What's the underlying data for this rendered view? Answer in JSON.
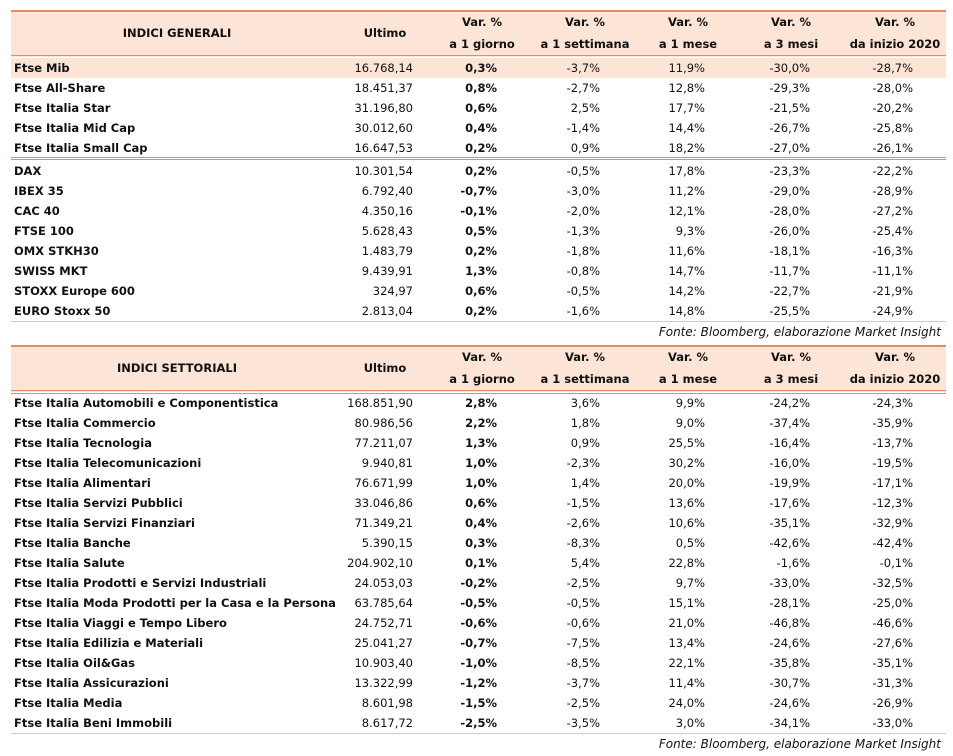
{
  "table1": {
    "header": {
      "name": "INDICI GENERALI",
      "columns": [
        [
          "Ultimo"
        ],
        [
          "Var. %",
          "a 1 giorno"
        ],
        [
          "Var. %",
          "a 1 settimana"
        ],
        [
          "Var. %",
          "a 1 mese"
        ],
        [
          "Var. %",
          "a 3 mesi"
        ],
        [
          "Var. %",
          "da inizio 2020"
        ]
      ]
    },
    "groups": [
      [
        [
          "Ftse Mib",
          "16.768,14",
          "0,3%",
          "-3,7%",
          "11,9%",
          "-30,0%",
          "-28,7%"
        ],
        [
          "Ftse All-Share",
          "18.451,37",
          "0,8%",
          "-2,7%",
          "12,8%",
          "-29,3%",
          "-28,0%"
        ],
        [
          "Ftse Italia Star",
          "31.196,80",
          "0,6%",
          "2,5%",
          "17,7%",
          "-21,5%",
          "-20,2%"
        ],
        [
          "Ftse Italia Mid Cap",
          "30.012,60",
          "0,4%",
          "-1,4%",
          "14,4%",
          "-26,7%",
          "-25,8%"
        ],
        [
          "Ftse Italia Small Cap",
          "16.647,53",
          "0,2%",
          "0,9%",
          "18,2%",
          "-27,0%",
          "-26,1%"
        ]
      ],
      [
        [
          "DAX",
          "10.301,54",
          "0,2%",
          "-0,5%",
          "17,8%",
          "-23,3%",
          "-22,2%"
        ],
        [
          "IBEX 35",
          "6.792,40",
          "-0,7%",
          "-3,0%",
          "11,2%",
          "-29,0%",
          "-28,9%"
        ],
        [
          "CAC 40",
          "4.350,16",
          "-0,1%",
          "-2,0%",
          "12,1%",
          "-28,0%",
          "-27,2%"
        ],
        [
          "FTSE 100",
          "5.628,43",
          "0,5%",
          "-1,3%",
          "9,3%",
          "-26,0%",
          "-25,4%"
        ],
        [
          "OMX STKH30",
          "1.483,79",
          "0,2%",
          "-1,8%",
          "11,6%",
          "-18,1%",
          "-16,3%"
        ],
        [
          "SWISS MKT",
          "9.439,91",
          "1,3%",
          "-0,8%",
          "14,7%",
          "-11,7%",
          "-11,1%"
        ],
        [
          "STOXX Europe 600",
          "324,97",
          "0,6%",
          "-0,5%",
          "14,2%",
          "-22,7%",
          "-21,9%"
        ],
        [
          "EURO Stoxx 50",
          "2.813,04",
          "0,2%",
          "-1,6%",
          "14,8%",
          "-25,5%",
          "-24,9%"
        ]
      ]
    ],
    "source": "Fonte: Bloomberg, elaborazione Market Insight"
  },
  "table2": {
    "header": {
      "name": "INDICI SETTORIALI",
      "columns": [
        [
          "Ultimo"
        ],
        [
          "Var. %",
          "a 1 giorno"
        ],
        [
          "Var. %",
          "a 1 settimana"
        ],
        [
          "Var. %",
          "a 1 mese"
        ],
        [
          "Var. %",
          "a 3 mesi"
        ],
        [
          "Var. %",
          "da inizio 2020"
        ]
      ]
    },
    "groups": [
      [
        [
          "Ftse Italia Automobili e Componentistica",
          "168.851,90",
          "2,8%",
          "3,6%",
          "9,9%",
          "-24,2%",
          "-24,3%"
        ],
        [
          "Ftse Italia Commercio",
          "80.986,56",
          "2,2%",
          "1,8%",
          "9,0%",
          "-37,4%",
          "-35,9%"
        ],
        [
          "Ftse Italia Tecnologia",
          "77.211,07",
          "1,3%",
          "0,9%",
          "25,5%",
          "-16,4%",
          "-13,7%"
        ],
        [
          "Ftse Italia Telecomunicazioni",
          "9.940,81",
          "1,0%",
          "-2,3%",
          "30,2%",
          "-16,0%",
          "-19,5%"
        ],
        [
          "Ftse Italia Alimentari",
          "76.671,99",
          "1,0%",
          "1,4%",
          "20,0%",
          "-19,9%",
          "-17,1%"
        ],
        [
          "Ftse Italia Servizi Pubblici",
          "33.046,86",
          "0,6%",
          "-1,5%",
          "13,6%",
          "-17,6%",
          "-12,3%"
        ],
        [
          "Ftse Italia Servizi Finanziari",
          "71.349,21",
          "0,4%",
          "-2,6%",
          "10,6%",
          "-35,1%",
          "-32,9%"
        ],
        [
          "Ftse Italia Banche",
          "5.390,15",
          "0,3%",
          "-8,3%",
          "0,5%",
          "-42,6%",
          "-42,4%"
        ],
        [
          "Ftse Italia Salute",
          "204.902,10",
          "0,1%",
          "5,4%",
          "22,8%",
          "-1,6%",
          "-0,1%"
        ],
        [
          "Ftse Italia Prodotti e Servizi Industriali",
          "24.053,03",
          "-0,2%",
          "-2,5%",
          "9,7%",
          "-33,0%",
          "-32,5%"
        ],
        [
          "Ftse Italia Moda Prodotti per la Casa e la Persona",
          "63.785,64",
          "-0,5%",
          "-0,5%",
          "15,1%",
          "-28,1%",
          "-25,0%"
        ],
        [
          "Ftse Italia Viaggi e Tempo Libero",
          "24.752,71",
          "-0,6%",
          "-0,6%",
          "21,0%",
          "-46,8%",
          "-46,6%"
        ],
        [
          "Ftse Italia Edilizia e Materiali",
          "25.041,27",
          "-0,7%",
          "-7,5%",
          "13,4%",
          "-24,6%",
          "-27,6%"
        ],
        [
          "Ftse Italia Oil&Gas",
          "10.903,40",
          "-1,0%",
          "-8,5%",
          "22,1%",
          "-35,8%",
          "-35,1%"
        ],
        [
          "Ftse Italia Assicurazioni",
          "13.322,99",
          "-1,2%",
          "-3,7%",
          "11,4%",
          "-30,7%",
          "-31,3%"
        ],
        [
          "Ftse Italia Media",
          "8.601,98",
          "-1,5%",
          "-2,5%",
          "24,0%",
          "-24,6%",
          "-26,9%"
        ],
        [
          "Ftse Italia Beni Immobili",
          "8.617,72",
          "-2,5%",
          "-3,5%",
          "3,0%",
          "-34,1%",
          "-33,0%"
        ]
      ]
    ],
    "source": "Fonte: Bloomberg, elaborazione Market Insight"
  }
}
